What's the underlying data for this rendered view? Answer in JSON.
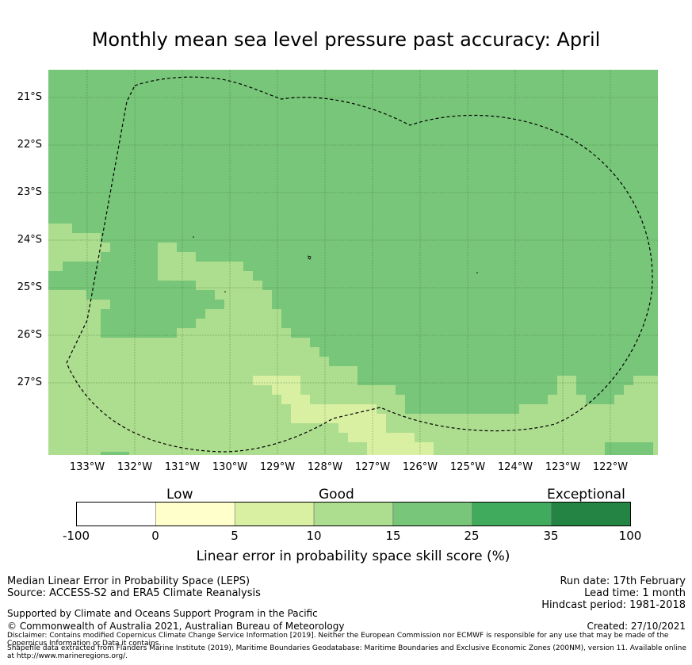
{
  "title": "Monthly mean sea level pressure past accuracy: April",
  "map": {
    "lat_labels": [
      "21°S",
      "22°S",
      "23°S",
      "24°S",
      "25°S",
      "26°S",
      "27°S"
    ],
    "lon_labels": [
      "133°W",
      "132°W",
      "131°W",
      "130°W",
      "129°W",
      "128°W",
      "127°W",
      "126°W",
      "125°W",
      "124°W",
      "123°W",
      "122°W"
    ],
    "colors": {
      "skill_15_25": "#78c679",
      "skill_10_15": "#addd8e",
      "skill_5_10": "#d9f0a3",
      "skill_25_35": "#41ab5d"
    },
    "boundary": "Exclusive Economic Zone (dashed)"
  },
  "colorbar": {
    "categories": [
      "Low",
      "Good",
      "Exceptional"
    ],
    "ticks": [
      "-100",
      "0",
      "5",
      "10",
      "15",
      "25",
      "35",
      "100"
    ],
    "colors": [
      "#ffffff",
      "#ffffcc",
      "#d9f0a3",
      "#addd8e",
      "#78c679",
      "#41ab5d",
      "#238443"
    ],
    "label": "Linear error in probability space skill score (%)"
  },
  "footer": {
    "left_line1": "Median Linear Error in Probability Space (LEPS)",
    "left_line2": "Source: ACCESS-S2 and ERA5 Climate Reanalysis",
    "left_line3": "Supported by Climate and Oceans Support Program in the Pacific",
    "left_line4": "© Commonwealth of Australia 2021, Australian Bureau of Meteorology",
    "right_line1": "Run date: 17th February",
    "right_line2": "Lead time: 1 month",
    "right_line3": "Hindcast period: 1981-2018",
    "right_line4": "Created: 27/10/2021",
    "disclaimer": "Disclaimer: Contains modified Copernicus Climate Change Service Information [2019]. Neither the European Commission nor ECMWF is responsible for any use that may be made of the Copernicus Information or Data it contains.",
    "shapefile": "Shapefile data extracted from Flanders Marine Institute (2019), Maritime Boundaries Geodatabase: Maritime Boundaries and Exclusive Economic Zones (200NM), version 11. Available online at http://www.marineregions.org/."
  }
}
